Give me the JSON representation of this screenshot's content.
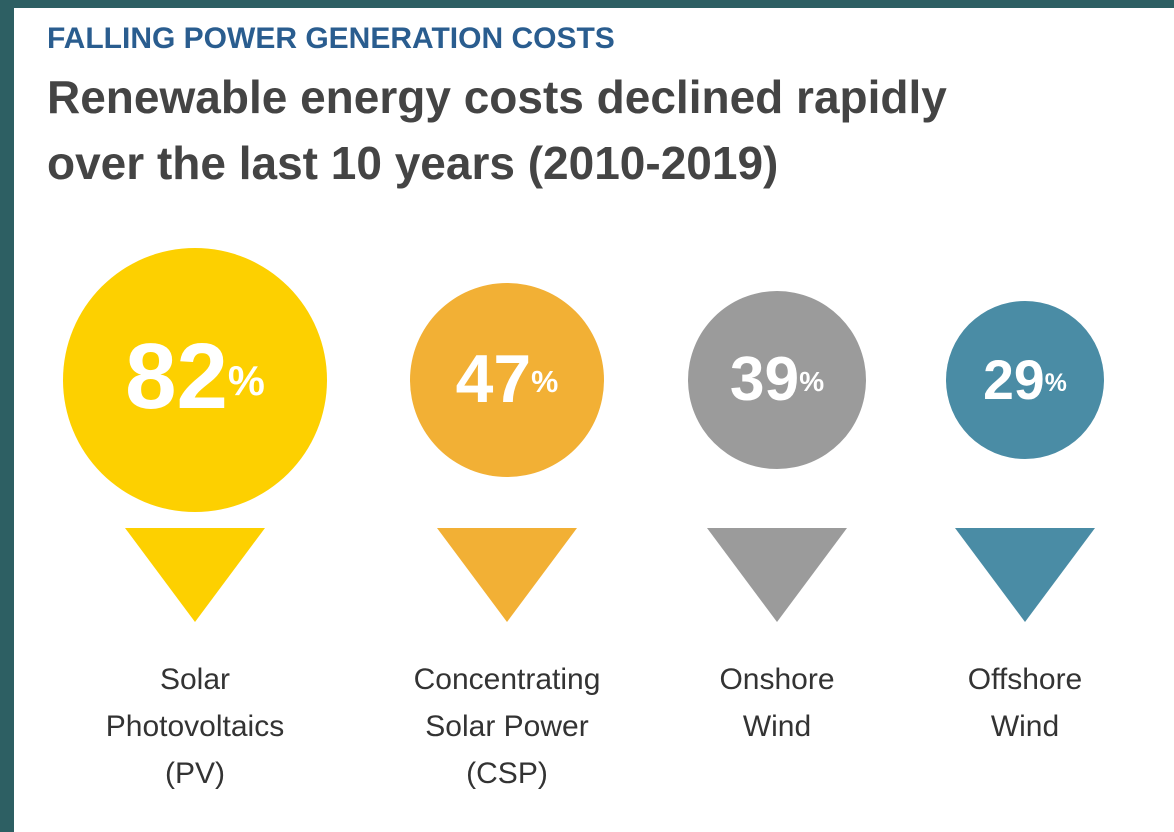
{
  "chart_data": {
    "type": "bubble",
    "title": "FALLING POWER GENERATION COSTS",
    "subtitle": [
      "Renewable energy costs declined rapidly",
      "over the last 10 years (2010-2019)"
    ],
    "unit": "%",
    "categories": [
      [
        "Solar",
        "Photovoltaics",
        "(PV)"
      ],
      [
        "Concentrating",
        "Solar Power",
        "(CSP)"
      ],
      [
        "Onshore",
        "Wind"
      ],
      [
        "Offshore",
        "Wind"
      ]
    ],
    "values": [
      82,
      47,
      39,
      29
    ],
    "colors": [
      "#fdd000",
      "#f2b035",
      "#9b9b9b",
      "#4a8ca5"
    ]
  }
}
